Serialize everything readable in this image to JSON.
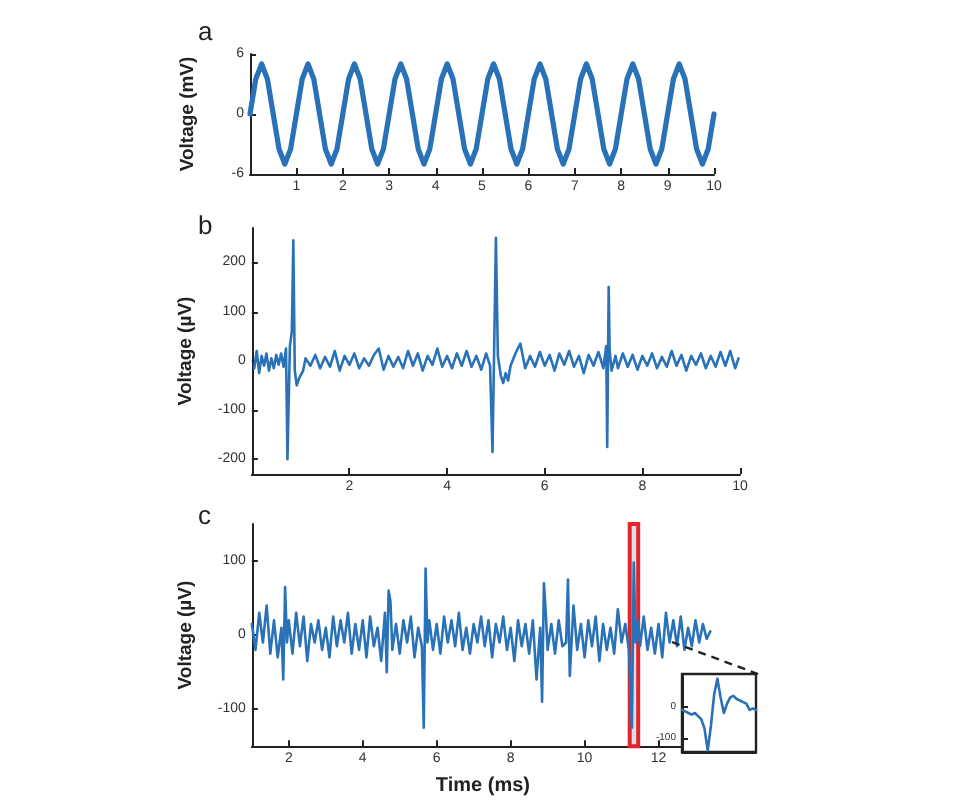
{
  "chart_data": [
    {
      "type": "line",
      "title": "a",
      "ylabel": "Voltage (mV)",
      "xlim": [
        0,
        10
      ],
      "xticks": [
        1,
        2,
        3,
        4,
        5,
        6,
        7,
        8,
        9,
        10
      ],
      "ylim": [
        -6,
        6
      ],
      "yticks": [
        -6,
        0,
        6
      ],
      "grid": false,
      "marker": "none",
      "line_style": "solid",
      "x": [
        0,
        0.125,
        0.25,
        0.375,
        0.5,
        0.625,
        0.75,
        0.875,
        1,
        1.125,
        1.25,
        1.375,
        1.5,
        1.625,
        1.75,
        1.875,
        2,
        2.125,
        2.25,
        2.375,
        2.5,
        2.625,
        2.75,
        2.875,
        3,
        3.125,
        3.25,
        3.375,
        3.5,
        3.625,
        3.75,
        3.875,
        4,
        4.125,
        4.25,
        4.375,
        4.5,
        4.625,
        4.75,
        4.875,
        5,
        5.125,
        5.25,
        5.375,
        5.5,
        5.625,
        5.75,
        5.875,
        6,
        6.125,
        6.25,
        6.375,
        6.5,
        6.625,
        6.75,
        6.875,
        7,
        7.125,
        7.25,
        7.375,
        7.5,
        7.625,
        7.75,
        7.875,
        8,
        8.125,
        8.25,
        8.375,
        8.5,
        8.625,
        8.75,
        8.875,
        9,
        9.125,
        9.25,
        9.375,
        9.5,
        9.625,
        9.75,
        9.875,
        10
      ],
      "series": [
        {
          "color": "#2a72b8",
          "values": [
            0,
            3.5,
            5,
            3.5,
            0,
            -3.5,
            -5,
            -3.5,
            0,
            3.5,
            5,
            3.5,
            0,
            -3.5,
            -5,
            -3.5,
            0,
            3.5,
            5,
            3.5,
            0,
            -3.5,
            -5,
            -3.5,
            0,
            3.5,
            5,
            3.5,
            0,
            -3.5,
            -5,
            -3.5,
            0,
            3.5,
            5,
            3.5,
            0,
            -3.5,
            -5,
            -3.5,
            0,
            3.5,
            5,
            3.5,
            0,
            -3.5,
            -5,
            -3.5,
            0,
            3.5,
            5,
            3.5,
            0,
            -3.5,
            -5,
            -3.5,
            0,
            3.5,
            5,
            3.5,
            0,
            -3.5,
            -5,
            -3.5,
            0,
            3.5,
            5,
            3.5,
            0,
            -3.5,
            -5,
            -3.5,
            0,
            3.5,
            5,
            3.5,
            0,
            -3.5,
            -5,
            -3.5,
            0
          ]
        }
      ]
    },
    {
      "type": "line",
      "title": "b",
      "ylabel": "Voltage (µV)",
      "xlim": [
        0,
        10
      ],
      "xticks": [
        2,
        4,
        6,
        8,
        10
      ],
      "ylim": [
        -230,
        270
      ],
      "yticks": [
        -200,
        -100,
        0,
        100,
        200
      ],
      "grid": false,
      "marker": "none",
      "line_style": "solid",
      "x": [
        0.05,
        0.1,
        0.15,
        0.2,
        0.25,
        0.3,
        0.35,
        0.4,
        0.45,
        0.5,
        0.55,
        0.6,
        0.65,
        0.7,
        0.73,
        0.78,
        0.82,
        0.85,
        0.88,
        0.92,
        0.97,
        1.05,
        1.1,
        1.2,
        1.3,
        1.4,
        1.5,
        1.6,
        1.7,
        1.8,
        1.9,
        2.0,
        2.1,
        2.2,
        2.3,
        2.4,
        2.5,
        2.6,
        2.7,
        2.8,
        2.9,
        3.0,
        3.1,
        3.2,
        3.3,
        3.4,
        3.5,
        3.6,
        3.7,
        3.8,
        3.9,
        4.0,
        4.1,
        4.2,
        4.3,
        4.4,
        4.5,
        4.6,
        4.7,
        4.8,
        4.88,
        4.93,
        4.97,
        5.0,
        5.04,
        5.1,
        5.15,
        5.2,
        5.25,
        5.3,
        5.4,
        5.5,
        5.6,
        5.7,
        5.8,
        5.9,
        6.0,
        6.1,
        6.2,
        6.3,
        6.4,
        6.5,
        6.6,
        6.7,
        6.8,
        6.9,
        7.0,
        7.1,
        7.2,
        7.26,
        7.28,
        7.31,
        7.33,
        7.37,
        7.45,
        7.5,
        7.6,
        7.7,
        7.8,
        7.9,
        8.0,
        8.1,
        8.2,
        8.3,
        8.4,
        8.5,
        8.6,
        8.7,
        8.8,
        8.9,
        9.0,
        9.1,
        9.2,
        9.3,
        9.4,
        9.5,
        9.6,
        9.7,
        9.8,
        9.9,
        9.97
      ],
      "series": [
        {
          "color": "#2a72b8",
          "values": [
            -15,
            20,
            -25,
            10,
            -10,
            15,
            -20,
            5,
            -15,
            12,
            -8,
            15,
            -12,
            25,
            -200,
            30,
            60,
            245,
            -20,
            -50,
            -35,
            -20,
            5,
            -10,
            12,
            -15,
            8,
            -12,
            20,
            -20,
            10,
            -8,
            15,
            -15,
            5,
            -10,
            12,
            25,
            -18,
            10,
            -12,
            8,
            -15,
            20,
            -10,
            15,
            -20,
            10,
            -8,
            25,
            -12,
            10,
            -15,
            15,
            -10,
            20,
            -12,
            10,
            -18,
            15,
            -10,
            -185,
            60,
            250,
            10,
            -30,
            -45,
            -25,
            -40,
            -10,
            15,
            35,
            -15,
            10,
            -12,
            18,
            -10,
            12,
            -20,
            15,
            -8,
            20,
            -12,
            10,
            -25,
            12,
            -10,
            18,
            -15,
            30,
            -175,
            150,
            20,
            -20,
            10,
            -15,
            15,
            -12,
            12,
            -18,
            10,
            -10,
            15,
            -15,
            8,
            -12,
            20,
            -10,
            12,
            -20,
            10,
            -8,
            15,
            -15,
            10,
            -12,
            18,
            -10,
            20,
            -15,
            5
          ]
        }
      ]
    },
    {
      "type": "line",
      "title": "c",
      "xlabel": "Time (ms)",
      "ylabel": "Voltage (µV)",
      "xlim": [
        1,
        13.5
      ],
      "xticks": [
        2,
        4,
        6,
        8,
        10,
        12
      ],
      "ylim": [
        -150,
        150
      ],
      "yticks": [
        -100,
        0,
        100
      ],
      "grid": false,
      "marker": "none",
      "line_style": "solid",
      "bands": [
        {
          "axis": "x",
          "from": 11.22,
          "to": 11.45,
          "color": "#e0262b"
        }
      ],
      "x": [
        1.0,
        1.1,
        1.2,
        1.3,
        1.4,
        1.5,
        1.6,
        1.7,
        1.8,
        1.85,
        1.9,
        1.95,
        2.0,
        2.1,
        2.2,
        2.3,
        2.4,
        2.5,
        2.6,
        2.7,
        2.8,
        2.9,
        3.0,
        3.1,
        3.2,
        3.3,
        3.4,
        3.5,
        3.6,
        3.7,
        3.8,
        3.9,
        4.0,
        4.1,
        4.2,
        4.3,
        4.4,
        4.5,
        4.6,
        4.65,
        4.7,
        4.75,
        4.8,
        4.9,
        5.0,
        5.1,
        5.2,
        5.3,
        5.4,
        5.5,
        5.6,
        5.65,
        5.7,
        5.75,
        5.8,
        5.9,
        6.0,
        6.1,
        6.2,
        6.3,
        6.4,
        6.5,
        6.6,
        6.7,
        6.8,
        6.9,
        7.0,
        7.1,
        7.2,
        7.3,
        7.4,
        7.5,
        7.6,
        7.7,
        7.8,
        7.9,
        8.0,
        8.1,
        8.2,
        8.3,
        8.4,
        8.5,
        8.6,
        8.7,
        8.8,
        8.85,
        8.9,
        8.95,
        9.0,
        9.1,
        9.2,
        9.3,
        9.4,
        9.5,
        9.55,
        9.6,
        9.7,
        9.8,
        9.9,
        10.0,
        10.1,
        10.2,
        10.3,
        10.4,
        10.5,
        10.6,
        10.7,
        10.8,
        10.9,
        11.0,
        11.1,
        11.2,
        11.28,
        11.33,
        11.38,
        11.45,
        11.5,
        11.6,
        11.7,
        11.8,
        11.9,
        12.0,
        12.1,
        12.2,
        12.3,
        12.4,
        12.5,
        12.6,
        12.7,
        12.8,
        12.9,
        13.0,
        13.1,
        13.2,
        13.3,
        13.4
      ],
      "series": [
        {
          "color": "#2a72b8",
          "values": [
            15,
            -20,
            30,
            -10,
            40,
            -25,
            20,
            -30,
            10,
            -60,
            65,
            -10,
            20,
            -25,
            30,
            -15,
            25,
            -35,
            15,
            -10,
            20,
            -20,
            10,
            -30,
            25,
            -15,
            20,
            -10,
            30,
            -25,
            15,
            -20,
            20,
            -30,
            25,
            -15,
            10,
            -35,
            30,
            -50,
            60,
            45,
            -20,
            15,
            -25,
            20,
            -10,
            25,
            -30,
            10,
            -15,
            -125,
            90,
            -10,
            20,
            -20,
            15,
            -25,
            25,
            -10,
            20,
            -15,
            30,
            -20,
            10,
            -25,
            15,
            -10,
            25,
            -15,
            20,
            -30,
            15,
            -10,
            25,
            -20,
            10,
            -35,
            20,
            -15,
            15,
            -25,
            20,
            -60,
            10,
            -90,
            70,
            30,
            -20,
            15,
            -25,
            20,
            -15,
            -10,
            75,
            -55,
            40,
            -20,
            15,
            -30,
            20,
            -15,
            25,
            -35,
            15,
            -20,
            10,
            -25,
            35,
            -10,
            15,
            -20,
            -125,
            98,
            -10,
            20,
            -15,
            25,
            -20,
            10,
            -25,
            15,
            -30,
            30,
            -10,
            20,
            -15,
            25,
            -20,
            10,
            -15,
            20,
            -10,
            15,
            -5,
            5
          ]
        }
      ]
    },
    {
      "type": "line",
      "categories": [
        null,
        null,
        null,
        null,
        null,
        null,
        null,
        null,
        null,
        null,
        null,
        null,
        null,
        null,
        null,
        null,
        null,
        null,
        null,
        null,
        null,
        null,
        null,
        null
      ],
      "ylim": [
        -145,
        105
      ],
      "yticks": [
        -100,
        0
      ],
      "tick_labels": "y",
      "grid": false,
      "marker": "none",
      "line_style": "solid",
      "series": [
        {
          "color": "#2a72b8",
          "values": [
            -10,
            -15,
            -20,
            -25,
            -20,
            -30,
            -40,
            -70,
            -140,
            -60,
            40,
            90,
            30,
            -20,
            10,
            30,
            35,
            25,
            20,
            15,
            10,
            -10,
            -5,
            -10
          ]
        }
      ]
    }
  ]
}
